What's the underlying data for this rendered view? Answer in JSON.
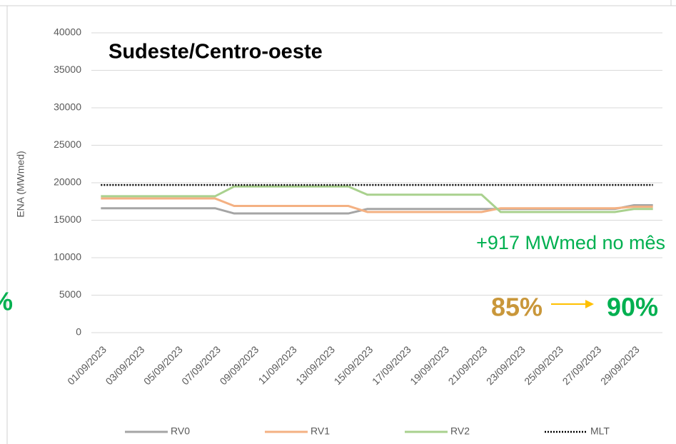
{
  "chart_data": {
    "type": "line",
    "title": "Sudeste/Centro-oeste",
    "y_label": "ENA (MWmed)",
    "categories": [
      "01/09/2023",
      null,
      "03/09/2023",
      null,
      "05/09/2023",
      null,
      "07/09/2023",
      null,
      "09/09/2023",
      null,
      "11/09/2023",
      null,
      "13/09/2023",
      null,
      "15/09/2023",
      null,
      "17/09/2023",
      null,
      "19/09/2023",
      null,
      "21/09/2023",
      null,
      "23/09/2023",
      null,
      "25/09/2023",
      null,
      "27/09/2023",
      null,
      "29/09/2023",
      null
    ],
    "series": [
      {
        "name": "RV0",
        "color": "#a5a5a5",
        "dash": "solid",
        "values": [
          16600,
          16600,
          16600,
          16600,
          16600,
          16600,
          16600,
          15900,
          15900,
          15900,
          15900,
          15900,
          15900,
          15900,
          16500,
          16500,
          16500,
          16500,
          16500,
          16500,
          16500,
          16500,
          16500,
          16500,
          16500,
          16500,
          16500,
          16500,
          17000,
          17000
        ]
      },
      {
        "name": "RV1",
        "color": "#f4b183",
        "dash": "solid",
        "values": [
          17900,
          17900,
          17900,
          17900,
          17900,
          17900,
          17900,
          16900,
          16900,
          16900,
          16900,
          16900,
          16900,
          16900,
          16100,
          16100,
          16100,
          16100,
          16100,
          16100,
          16100,
          16600,
          16600,
          16600,
          16600,
          16600,
          16600,
          16600,
          16800,
          16800
        ]
      },
      {
        "name": "RV2",
        "color": "#a9d18e",
        "dash": "solid",
        "values": [
          18200,
          18200,
          18200,
          18200,
          18200,
          18200,
          18200,
          19500,
          19500,
          19500,
          19500,
          19500,
          19500,
          19500,
          18400,
          18400,
          18400,
          18400,
          18400,
          18400,
          18400,
          16100,
          16100,
          16100,
          16100,
          16100,
          16100,
          16100,
          16500,
          16500
        ]
      },
      {
        "name": "MLT",
        "color": "#000000",
        "dash": "dotted",
        "values": [
          19700,
          19700,
          19700,
          19700,
          19700,
          19700,
          19700,
          19700,
          19700,
          19700,
          19700,
          19700,
          19700,
          19700,
          19700,
          19700,
          19700,
          19700,
          19700,
          19700,
          19700,
          19700,
          19700,
          19700,
          19700,
          19700,
          19700,
          19700,
          19700,
          19700
        ]
      }
    ],
    "ylim": [
      0,
      40000
    ],
    "yticks": [
      0,
      5000,
      10000,
      15000,
      20000,
      25000,
      30000,
      35000,
      40000
    ],
    "grid": true,
    "legend": "bottom",
    "annotations": [
      {
        "text": "+917 MWmed no mês",
        "color": "#00b050"
      },
      {
        "text": "85%",
        "color": "#c9973a"
      },
      {
        "text": "90%",
        "color": "#00b050"
      },
      {
        "text": "%",
        "color": "#00b050"
      }
    ]
  }
}
